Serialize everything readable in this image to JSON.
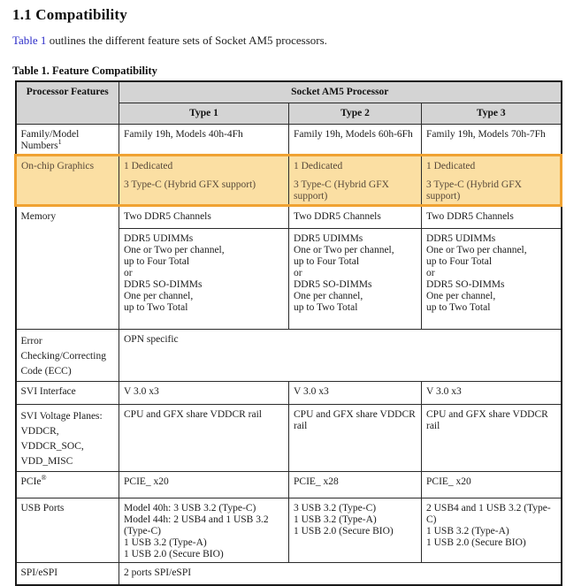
{
  "page": {
    "section_title": "1.1 Compatibility",
    "intro_link_text": "Table 1",
    "intro_text_after_link": " outlines the different feature sets of Socket AM5 processors.",
    "table_caption": "Table 1. Feature Compatibility"
  },
  "colors": {
    "header_bg": "#d4d4d4",
    "highlight_bg": "#fbdfa3",
    "highlight_border": "#f0a232",
    "link_blue": "#2b2bc8",
    "border": "#2b2b2b"
  },
  "table": {
    "header": {
      "features_col": "Processor Features",
      "group_col": "Socket AM5 Processor",
      "types": [
        "Type 1",
        "Type 2",
        "Type 3"
      ]
    },
    "rows": {
      "family": {
        "label": "Family/Model Numbers",
        "label_superscript": "1",
        "values": [
          "Family 19h, Models 40h-4Fh",
          "Family 19h, Models 60h-6Fh",
          "Family 19h, Models 70h-7Fh"
        ]
      },
      "graphics": {
        "label": "On-chip Graphics",
        "highlighted": true,
        "values": [
          [
            "1 Dedicated",
            "3 Type-C (Hybrid GFX support)"
          ],
          [
            "1 Dedicated",
            "3 Type-C (Hybrid GFX support)"
          ],
          [
            "1 Dedicated",
            "3 Type-C (Hybrid GFX support)"
          ]
        ]
      },
      "memory_channels": {
        "label": "Memory",
        "values": [
          "Two DDR5 Channels",
          "Two DDR5 Channels",
          "Two DDR5 Channels"
        ]
      },
      "memory_dimms": {
        "values": [
          [
            "DDR5 UDIMMs",
            "One or Two per channel,",
            "up to Four Total",
            "or",
            "DDR5 SO-DIMMs",
            "One per channel,",
            "up to Two Total"
          ],
          [
            "DDR5 UDIMMs",
            "One or Two per channel,",
            "up to Four Total",
            "or",
            "DDR5 SO-DIMMs",
            "One per channel,",
            "up to Two Total"
          ],
          [
            "DDR5 UDIMMs",
            "One or Two per channel,",
            "up to Four Total",
            "or",
            "DDR5 SO-DIMMs",
            "One per channel,",
            "up to Two Total"
          ]
        ]
      },
      "ecc": {
        "label_lines": [
          "Error Checking/Correcting",
          "Code (ECC)"
        ],
        "value": "OPN specific"
      },
      "svi_interface": {
        "label": "SVI Interface",
        "values": [
          "V 3.0 x3",
          "V 3.0 x3",
          "V 3.0 x3"
        ]
      },
      "svi_voltage": {
        "label_lines": [
          "SVI Voltage Planes:",
          "VDDCR, VDDCR_SOC,",
          "VDD_MISC"
        ],
        "values": [
          "CPU and GFX share VDDCR rail",
          "CPU and GFX share VDDCR rail",
          "CPU and GFX share VDDCR rail"
        ]
      },
      "pcie": {
        "label": "PCIe",
        "label_superscript": "®",
        "values": [
          "PCIE_ x20",
          "PCIE_ x28",
          "PCIE_ x20"
        ]
      },
      "usb": {
        "label": "USB Ports",
        "values": [
          [
            "Model 40h: 3 USB 3.2 (Type-C)",
            "Model 44h: 2 USB4 and 1 USB 3.2 (Type-C)",
            "1 USB 3.2 (Type-A)",
            "1 USB 2.0 (Secure BIO)"
          ],
          [
            "3 USB 3.2 (Type-C)",
            "1 USB 3.2 (Type-A)",
            "1 USB 2.0 (Secure BIO)"
          ],
          [
            "2 USB4 and 1 USB 3.2 (Type-C)",
            "1 USB 3.2 (Type-A)",
            "1 USB 2.0 (Secure BIO)"
          ]
        ]
      },
      "spi": {
        "label": "SPI/eSPI",
        "value": "2 ports SPI/eSPI"
      }
    }
  }
}
